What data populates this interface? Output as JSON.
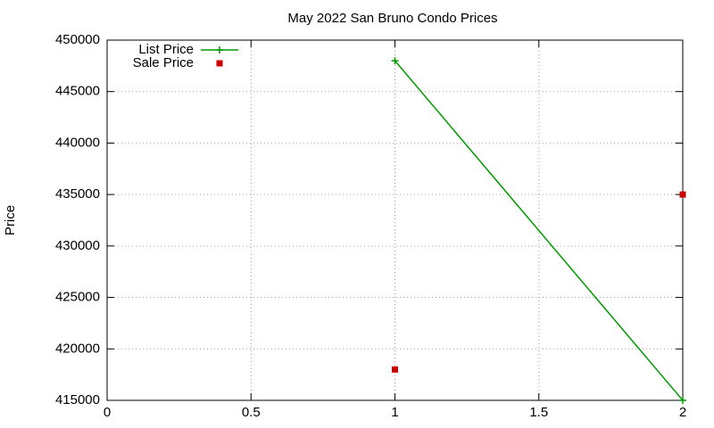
{
  "chart_data": {
    "type": "line",
    "title": "May 2022 San Bruno Condo Prices",
    "y_label": "Price",
    "x": [
      1,
      2
    ],
    "series": [
      {
        "name": "List Price",
        "type": "line",
        "color": "#009900",
        "values": [
          448000,
          415000
        ]
      },
      {
        "name": "Sale Price",
        "type": "scatter",
        "color": "#cc0000",
        "values": [
          418000,
          435000
        ]
      }
    ],
    "xlim": [
      0,
      2
    ],
    "xticks": [
      0,
      0.5,
      1,
      1.5,
      2
    ],
    "ylim": [
      415000,
      450000
    ],
    "yticks": [
      415000,
      420000,
      425000,
      430000,
      435000,
      440000,
      445000,
      450000
    ],
    "grid": true,
    "legend": "top-left"
  }
}
